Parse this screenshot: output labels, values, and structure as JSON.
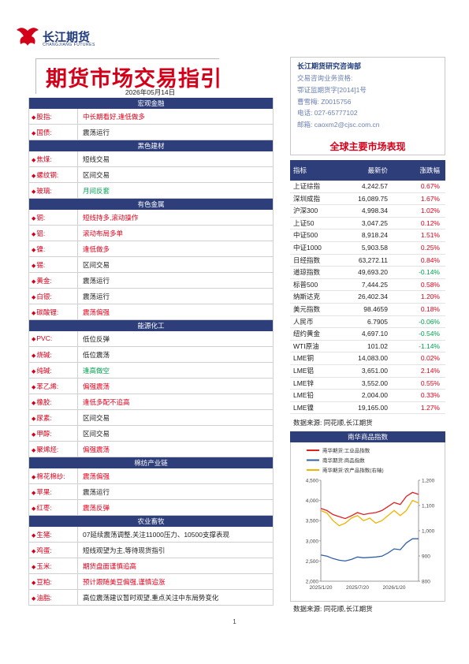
{
  "header": {
    "brand": "长江期货",
    "brand_en": "CHANGJIANG FUTURES",
    "title": "期货市场交易指引",
    "date": "2026年05月14日"
  },
  "contact": {
    "dept": "长江期货研究咨询部",
    "lines": [
      "交易咨询业务资格:",
      "鄂证监期货字[2014]1号",
      "曹雪梅: Z0015756",
      "电话: 027-65777102",
      "邮箱: caoxm2@cjsc.com.cn"
    ]
  },
  "guide": {
    "sections": [
      {
        "title": "宏观金融",
        "items": [
          {
            "name": "股指:",
            "view": "中长期看好,逢低做多",
            "color": "#e0001b"
          },
          {
            "name": "国债:",
            "view": "震荡运行",
            "color": "#222222"
          }
        ]
      },
      {
        "title": "黑色建材",
        "items": [
          {
            "name": "焦煤:",
            "view": "短线交易",
            "color": "#222222"
          },
          {
            "name": "螺纹钢:",
            "view": "区间交易",
            "color": "#222222"
          },
          {
            "name": "玻璃:",
            "view": "月间反套",
            "color": "#00a050"
          }
        ]
      },
      {
        "title": "有色金属",
        "items": [
          {
            "name": "铜:",
            "view": "短线持多,滚动操作",
            "color": "#e0001b"
          },
          {
            "name": "铝:",
            "view": "滚动布局多单",
            "color": "#e0001b"
          },
          {
            "name": "镍:",
            "view": "逢低做多",
            "color": "#e0001b"
          },
          {
            "name": "锡:",
            "view": "区间交易",
            "color": "#222222"
          },
          {
            "name": "黄金:",
            "view": "震荡运行",
            "color": "#222222"
          },
          {
            "name": "白银:",
            "view": "震荡运行",
            "color": "#222222"
          },
          {
            "name": "碳酸锂:",
            "view": "震荡偏强",
            "color": "#e0001b"
          }
        ]
      },
      {
        "title": "能源化工",
        "items": [
          {
            "name": "PVC:",
            "view": "低位反弹",
            "color": "#222222"
          },
          {
            "name": "烧碱:",
            "view": "低位震荡",
            "color": "#222222"
          },
          {
            "name": "纯碱:",
            "view": "逢高做空",
            "color": "#00a050"
          },
          {
            "name": "苯乙烯:",
            "view": "偏强震荡",
            "color": "#e0001b"
          },
          {
            "name": "橡胶:",
            "view": "逢低多配不追高",
            "color": "#e0001b"
          },
          {
            "name": "尿素:",
            "view": "区间交易",
            "color": "#222222"
          },
          {
            "name": "甲醇:",
            "view": "区间交易",
            "color": "#222222"
          },
          {
            "name": "聚烯烃:",
            "view": "偏强震荡",
            "color": "#e0001b"
          }
        ]
      },
      {
        "title": "棉纺产业链",
        "items": [
          {
            "name": "棉花棉纱:",
            "view": "震荡偏强",
            "color": "#e0001b"
          },
          {
            "name": "苹果:",
            "view": "震荡运行",
            "color": "#222222"
          },
          {
            "name": "红枣:",
            "view": "震荡反弹",
            "color": "#e0001b"
          }
        ]
      },
      {
        "title": "农业畜牧",
        "items": [
          {
            "name": "生猪:",
            "view": "07延续震荡调整,关注11000压力、10500支撑表现",
            "color": "#222222"
          },
          {
            "name": "鸡蛋:",
            "view": "短线观望为主,等待现货指引",
            "color": "#222222"
          },
          {
            "name": "玉米:",
            "view": "期货盘面谨慎追高",
            "color": "#e0001b"
          },
          {
            "name": "豆粕:",
            "view": "预计跟随美豆偏强,谨慎追涨",
            "color": "#e0001b"
          },
          {
            "name": "油脂:",
            "view": "高位震荡建议暂时观望,重点关注中东局势变化",
            "color": "#222222"
          }
        ]
      }
    ]
  },
  "market": {
    "title": "全球主要市场表现",
    "columns": [
      "指标",
      "最新价",
      "涨跌幅"
    ],
    "rows": [
      [
        "上证综指",
        "4,242.57",
        "0.67%"
      ],
      [
        "深圳成指",
        "16,089.75",
        "1.67%"
      ],
      [
        "沪深300",
        "4,998.34",
        "1.02%"
      ],
      [
        "上证50",
        "3,047.25",
        "0.12%"
      ],
      [
        "中证500",
        "8,918.24",
        "1.51%"
      ],
      [
        "中证1000",
        "5,903.58",
        "0.25%"
      ],
      [
        "日经指数",
        "63,272.11",
        "0.84%"
      ],
      [
        "道琼指数",
        "49,693.20",
        "-0.14%"
      ],
      [
        "标普500",
        "7,444.25",
        "0.58%"
      ],
      [
        "纳斯达克",
        "26,402.34",
        "1.20%"
      ],
      [
        "美元指数",
        "98.4659",
        "0.18%"
      ],
      [
        "人民币",
        "6.7905",
        "-0.06%"
      ],
      [
        "纽约黄金",
        "4,697.10",
        "-0.54%"
      ],
      [
        "WTI原油",
        "101.02",
        "-1.14%"
      ],
      [
        "LME铜",
        "14,083.00",
        "0.02%"
      ],
      [
        "LME铝",
        "3,651.00",
        "2.14%"
      ],
      [
        "LME锌",
        "3,552.00",
        "0.55%"
      ],
      [
        "LME铅",
        "2,004.00",
        "0.33%"
      ],
      [
        "LME镍",
        "19,165.00",
        "1.27%"
      ]
    ],
    "source": "数据来源: 同花顺,长江期货"
  },
  "chart_data": {
    "type": "line",
    "title": "南华商品指数",
    "categories": [
      "2025/1/20",
      null,
      null,
      null,
      null,
      null,
      "2025/7/20",
      null,
      null,
      null,
      null,
      null,
      "2026/1/20",
      null,
      null,
      null,
      null
    ],
    "series": [
      {
        "name": "南华期货:工业品指数",
        "color": "#e02020",
        "values": [
          3800,
          3750,
          3650,
          3600,
          3550,
          3620,
          3700,
          3650,
          3680,
          3700,
          3750,
          3850,
          3950,
          3900,
          4100,
          4200,
          4150
        ]
      },
      {
        "name": "南华期货:商品指数",
        "color": "#3060a8",
        "values": [
          2650,
          2620,
          2560,
          2520,
          2500,
          2540,
          2600,
          2580,
          2590,
          2600,
          2620,
          2700,
          2800,
          2780,
          2950,
          3050,
          3050
        ]
      },
      {
        "name": "南华期货:农产品指数(右轴)",
        "color": "#f0b400",
        "axis": "y2",
        "values": [
          1080,
          1070,
          1040,
          1020,
          1030,
          1050,
          1060,
          1040,
          1050,
          1030,
          1040,
          1060,
          1080,
          1060,
          1080,
          1120,
          1110
        ]
      }
    ],
    "ylim": [
      2000,
      4500
    ],
    "yticks": [
      {
        "value": 2000,
        "label": "2,000"
      },
      {
        "value": 2500,
        "label": "2,500"
      },
      {
        "value": 3000,
        "label": "3,000"
      },
      {
        "value": 3500,
        "label": "3,500"
      },
      {
        "value": 4000,
        "label": "4,000"
      },
      {
        "value": 4500,
        "label": "4,500"
      }
    ],
    "y2lim": [
      800,
      1200
    ],
    "y2ticks": [
      800,
      900,
      {
        "value": 1000,
        "label": "1,000"
      },
      {
        "value": 1100,
        "label": "1,100"
      },
      {
        "value": 1200,
        "label": "1,200"
      }
    ],
    "source": "数据来源: 同花顺,长江期货"
  },
  "page_number": "1"
}
